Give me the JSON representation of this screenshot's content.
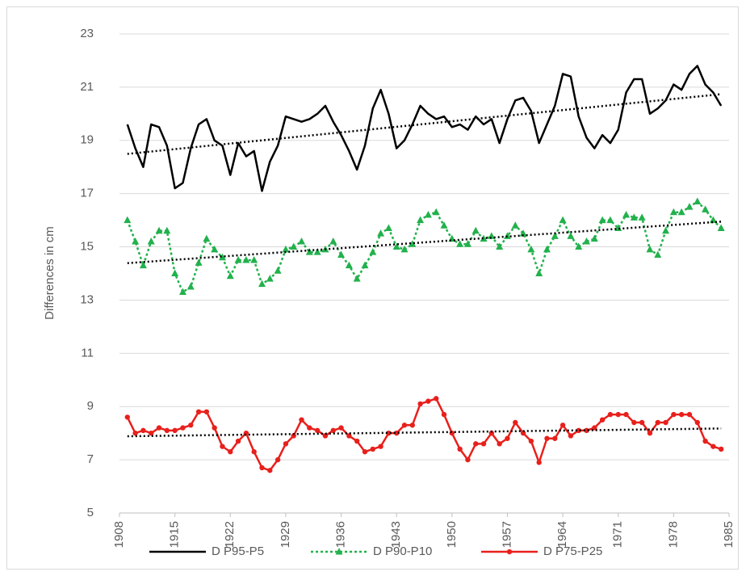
{
  "chart_data": {
    "type": "line",
    "ylabel": "Differences in cm",
    "x": [
      1909,
      1910,
      1911,
      1912,
      1913,
      1914,
      1915,
      1916,
      1917,
      1918,
      1919,
      1920,
      1921,
      1922,
      1923,
      1924,
      1925,
      1926,
      1927,
      1928,
      1929,
      1930,
      1931,
      1932,
      1933,
      1934,
      1935,
      1936,
      1937,
      1938,
      1939,
      1940,
      1941,
      1942,
      1943,
      1944,
      1945,
      1946,
      1947,
      1948,
      1949,
      1950,
      1951,
      1952,
      1953,
      1954,
      1955,
      1956,
      1957,
      1958,
      1959,
      1960,
      1961,
      1962,
      1963,
      1964,
      1965,
      1966,
      1967,
      1968,
      1969,
      1970,
      1971,
      1972,
      1973,
      1974,
      1975,
      1976,
      1977,
      1978,
      1979,
      1980,
      1981,
      1982,
      1983,
      1984
    ],
    "xlim": [
      1908,
      1985
    ],
    "xticks": [
      1908,
      1915,
      1922,
      1929,
      1936,
      1943,
      1950,
      1957,
      1964,
      1971,
      1978,
      1985
    ],
    "ylim": [
      5,
      23
    ],
    "yticks": [
      5,
      7,
      9,
      11,
      13,
      15,
      17,
      19,
      21,
      23
    ],
    "grid": true,
    "trendline": true,
    "legend": "bottom",
    "series": [
      {
        "name": "D P95-P5",
        "color": "#000000",
        "dash": "solid",
        "marker": "none",
        "values": [
          19.6,
          18.7,
          18.0,
          19.6,
          19.5,
          18.8,
          17.2,
          17.4,
          18.7,
          19.6,
          19.8,
          19.0,
          18.8,
          17.7,
          18.9,
          18.4,
          18.6,
          17.1,
          18.2,
          18.8,
          19.9,
          19.8,
          19.7,
          19.8,
          20.0,
          20.3,
          19.7,
          19.2,
          18.6,
          17.9,
          18.8,
          20.2,
          20.9,
          20.0,
          18.7,
          19.0,
          19.6,
          20.3,
          20.0,
          19.8,
          19.9,
          19.5,
          19.6,
          19.4,
          19.9,
          19.6,
          19.8,
          18.9,
          19.8,
          20.5,
          20.6,
          20.1,
          18.9,
          19.6,
          20.3,
          21.5,
          21.4,
          19.9,
          19.1,
          18.7,
          19.2,
          18.9,
          19.4,
          20.8,
          21.3,
          21.3,
          20.0,
          20.2,
          20.5,
          21.1,
          20.9,
          21.5,
          21.8,
          21.1,
          20.8,
          20.3
        ]
      },
      {
        "name": "D P90-P10",
        "color": "#22b14c",
        "dash": "dot",
        "marker": "triangle",
        "values": [
          16.0,
          15.2,
          14.3,
          15.2,
          15.6,
          15.6,
          14.0,
          13.3,
          13.5,
          14.4,
          15.3,
          14.9,
          14.6,
          13.9,
          14.5,
          14.5,
          14.5,
          13.6,
          13.8,
          14.1,
          14.9,
          15.0,
          15.2,
          14.8,
          14.8,
          14.9,
          15.2,
          14.7,
          14.3,
          13.8,
          14.3,
          14.8,
          15.5,
          15.7,
          15.0,
          14.9,
          15.1,
          16.0,
          16.2,
          16.3,
          15.8,
          15.3,
          15.1,
          15.1,
          15.6,
          15.3,
          15.4,
          15.0,
          15.4,
          15.8,
          15.5,
          14.9,
          14.0,
          14.9,
          15.4,
          16.0,
          15.4,
          15.0,
          15.2,
          15.3,
          16.0,
          16.0,
          15.7,
          16.2,
          16.1,
          16.1,
          14.9,
          14.7,
          15.6,
          16.3,
          16.3,
          16.5,
          16.7,
          16.4,
          16.0,
          15.7
        ]
      },
      {
        "name": "D P75-P25",
        "color": "#e8201c",
        "dash": "solid",
        "marker": "circle",
        "values": [
          8.6,
          8.0,
          8.1,
          8.0,
          8.2,
          8.1,
          8.1,
          8.2,
          8.3,
          8.8,
          8.8,
          8.2,
          7.5,
          7.3,
          7.7,
          8.0,
          7.3,
          6.7,
          6.6,
          7.0,
          7.6,
          7.9,
          8.5,
          8.2,
          8.1,
          7.9,
          8.1,
          8.2,
          7.9,
          7.7,
          7.3,
          7.4,
          7.5,
          8.0,
          8.0,
          8.3,
          8.3,
          9.1,
          9.2,
          9.3,
          8.7,
          8.0,
          7.4,
          7.0,
          7.6,
          7.6,
          8.0,
          7.6,
          7.8,
          8.4,
          8.0,
          7.7,
          6.9,
          7.8,
          7.8,
          8.3,
          7.9,
          8.1,
          8.1,
          8.2,
          8.5,
          8.7,
          8.7,
          8.7,
          8.4,
          8.4,
          8.0,
          8.4,
          8.4,
          8.7,
          8.7,
          8.7,
          8.4,
          7.7,
          7.5,
          7.4
        ]
      }
    ]
  }
}
